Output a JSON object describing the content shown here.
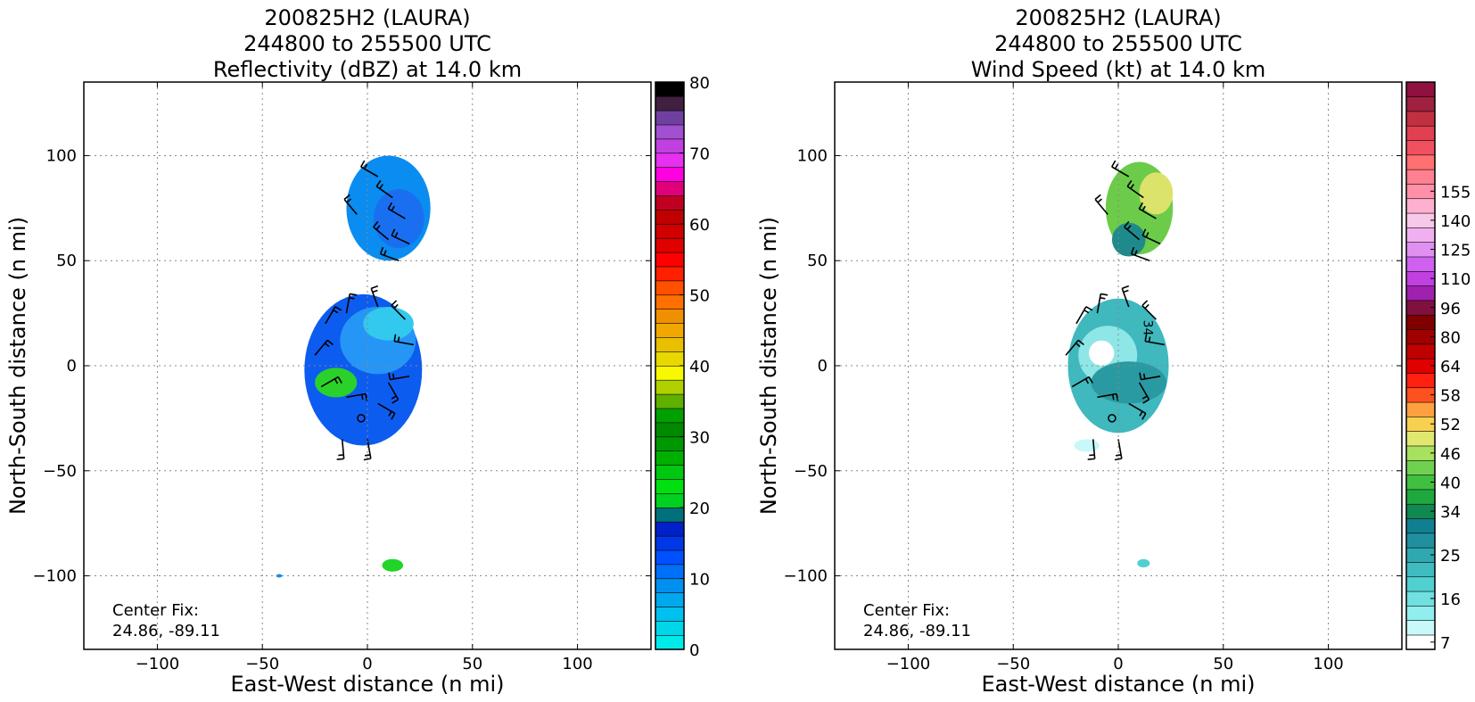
{
  "chart_data": [
    {
      "type": "heatmap",
      "title_lines": [
        "200825H2 (LAURA)",
        "244800 to 255500 UTC",
        "Reflectivity (dBZ) at 14.0 km"
      ],
      "xlabel": "East-West distance (n mi)",
      "ylabel": "North-South distance (n mi)",
      "xlim": [
        -135,
        135
      ],
      "ylim": [
        -135,
        135
      ],
      "xticks": [
        -100,
        -50,
        0,
        50,
        100
      ],
      "yticks": [
        -100,
        -50,
        0,
        50,
        100
      ],
      "grid": true,
      "annotation": [
        "Center Fix:",
        "24.86, -89.11"
      ],
      "colorbar": {
        "ticks": [
          0,
          10,
          20,
          30,
          40,
          50,
          60,
          70,
          80
        ],
        "range": [
          0,
          80
        ],
        "colors": [
          "#00eaea",
          "#00d6ea",
          "#00c0ee",
          "#00a8ee",
          "#0090f0",
          "#0070f8",
          "#0050ff",
          "#0038e8",
          "#0020c8",
          "#00707a",
          "#00d020",
          "#00e010",
          "#00c810",
          "#00b000",
          "#009800",
          "#008a00",
          "#00a000",
          "#60b000",
          "#b0d000",
          "#f8f800",
          "#e8d800",
          "#e8c000",
          "#f0a800",
          "#f09000",
          "#ff7000",
          "#ff5000",
          "#ff2000",
          "#ff0000",
          "#e00000",
          "#d00000",
          "#c00000",
          "#c00020",
          "#e0007a",
          "#ff00e0",
          "#e830f0",
          "#c040e0",
          "#a050d0",
          "#7040a0",
          "#402040",
          "#000000"
        ]
      },
      "storm_regions": [
        {
          "cx": 10,
          "cy": 75,
          "rx": 20,
          "ry": 25,
          "color": "#0a8cf0"
        },
        {
          "cx": 15,
          "cy": 70,
          "rx": 12,
          "ry": 14,
          "color": "#1a6ff0"
        },
        {
          "cx": -2,
          "cy": -2,
          "rx": 28,
          "ry": 36,
          "color": "#0d5cf0"
        },
        {
          "cx": 5,
          "cy": 12,
          "rx": 18,
          "ry": 16,
          "color": "#2596f5"
        },
        {
          "cx": 10,
          "cy": 20,
          "rx": 12,
          "ry": 8,
          "color": "#33c8ee"
        },
        {
          "cx": -15,
          "cy": -8,
          "rx": 10,
          "ry": 7,
          "color": "#2bd12b"
        },
        {
          "cx": 12,
          "cy": -95,
          "rx": 5,
          "ry": 3,
          "color": "#22d42a"
        },
        {
          "cx": -42,
          "cy": -100,
          "rx": 1.5,
          "ry": 0.8,
          "color": "#0a8cf0"
        }
      ]
    },
    {
      "type": "heatmap",
      "title_lines": [
        "200825H2 (LAURA)",
        "244800 to 255500 UTC",
        "Wind Speed (kt) at 14.0 km"
      ],
      "xlabel": "East-West distance (n mi)",
      "ylabel": "North-South distance (n mi)",
      "xlim": [
        -135,
        135
      ],
      "ylim": [
        -135,
        135
      ],
      "xticks": [
        -100,
        -50,
        0,
        50,
        100
      ],
      "yticks": [
        -100,
        -50,
        0,
        50,
        100
      ],
      "grid": true,
      "annotation": [
        "Center Fix:",
        "24.86, -89.11"
      ],
      "contour_label": "34",
      "colorbar": {
        "ticks": [
          7,
          16,
          25,
          34,
          40,
          46,
          52,
          58,
          64,
          80,
          96,
          110,
          125,
          140,
          155
        ],
        "tick_positions": [
          0.5,
          3.5,
          6.5,
          9.5,
          11.5,
          13.5,
          15.5,
          17.5,
          19.5,
          21.5,
          23.5,
          25.5,
          27.5,
          29.5,
          31.5
        ],
        "colors": [
          "#ffffff",
          "#c8f8f8",
          "#90eeee",
          "#70e0e0",
          "#50d0d0",
          "#40bcc0",
          "#30a8b0",
          "#2090a0",
          "#108090",
          "#108850",
          "#20a840",
          "#40c040",
          "#70d050",
          "#a8e060",
          "#e0e870",
          "#f8d050",
          "#ffa040",
          "#ff5020",
          "#ff2010",
          "#e00000",
          "#c00000",
          "#a00000",
          "#800000",
          "#801040",
          "#a020b0",
          "#c040e0",
          "#d060f0",
          "#e090f0",
          "#f0b0f0",
          "#f8c8e8",
          "#ffb0d0",
          "#ff90a8",
          "#ff8090",
          "#ff7070",
          "#f05060",
          "#e04050",
          "#c03040",
          "#a02040",
          "#901040"
        ]
      },
      "storm_regions": [
        {
          "cx": 10,
          "cy": 75,
          "rx": 16,
          "ry": 22,
          "color": "#6ccc4a"
        },
        {
          "cx": 18,
          "cy": 82,
          "rx": 8,
          "ry": 10,
          "color": "#dce36a"
        },
        {
          "cx": 5,
          "cy": 60,
          "rx": 8,
          "ry": 8,
          "color": "#1f8a8c"
        },
        {
          "cx": 0,
          "cy": 0,
          "rx": 24,
          "ry": 32,
          "color": "#3fb8be"
        },
        {
          "cx": -5,
          "cy": 5,
          "rx": 14,
          "ry": 14,
          "color": "#8fe6e6"
        },
        {
          "cx": -8,
          "cy": 6,
          "rx": 6,
          "ry": 6,
          "color": "#ffffff"
        },
        {
          "cx": 5,
          "cy": -8,
          "rx": 18,
          "ry": 10,
          "color": "#2a9aa2"
        },
        {
          "cx": -15,
          "cy": -38,
          "rx": 6,
          "ry": 3,
          "color": "#c8f8f8"
        },
        {
          "cx": 12,
          "cy": -94,
          "rx": 3,
          "ry": 2,
          "color": "#50d0d0"
        }
      ]
    }
  ]
}
